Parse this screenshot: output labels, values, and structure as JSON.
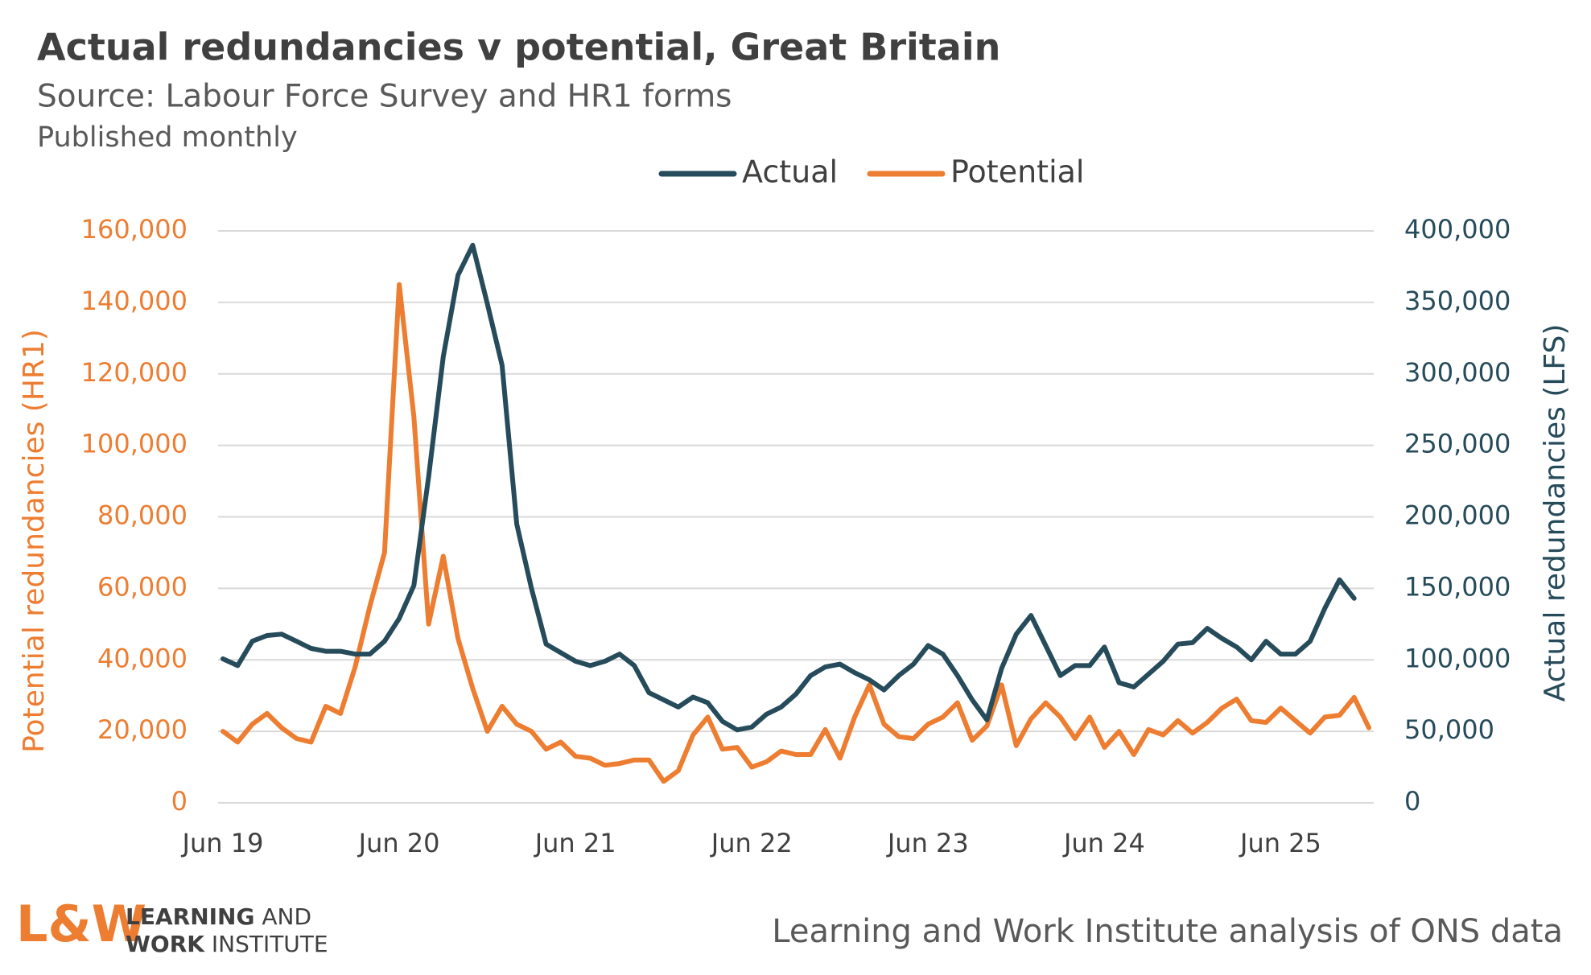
{
  "chart_data": {
    "type": "line",
    "title": "Actual redundancies v potential, Great Britain",
    "subtitle": "Source: Labour Force Survey and HR1 forms",
    "note": "Published monthly",
    "categories": [
      "Jun 19",
      null,
      null,
      null,
      null,
      null,
      null,
      null,
      null,
      null,
      null,
      null,
      "Jun 20",
      null,
      null,
      null,
      null,
      null,
      null,
      null,
      null,
      null,
      null,
      null,
      "Jun 21",
      null,
      null,
      null,
      null,
      null,
      null,
      null,
      null,
      null,
      null,
      null,
      "Jun 22",
      null,
      null,
      null,
      null,
      null,
      null,
      null,
      null,
      null,
      null,
      null,
      "Jun 23",
      null,
      null,
      null,
      null,
      null,
      null,
      null,
      null,
      null,
      null,
      null,
      "Jun 24",
      null,
      null,
      null,
      null,
      null,
      null,
      null,
      null,
      null,
      null,
      null,
      "Jun 25",
      null,
      null,
      null,
      null,
      null,
      null
    ],
    "series": [
      {
        "name": "Actual",
        "color": "#264b5a",
        "axis": "y2",
        "values": [
          100700,
          96000,
          113000,
          117000,
          118000,
          113000,
          108000,
          106000,
          106000,
          104000,
          104000,
          113000,
          129000,
          152000,
          228000,
          312000,
          369000,
          390000,
          349000,
          306000,
          195000,
          150000,
          111000,
          105000,
          99000,
          96000,
          99000,
          104000,
          96000,
          77000,
          72000,
          67000,
          74000,
          70000,
          57000,
          51000,
          53000,
          62000,
          67000,
          76000,
          89000,
          95000,
          97000,
          91000,
          86000,
          79000,
          89000,
          97000,
          110000,
          104000,
          89000,
          72000,
          58000,
          94000,
          118000,
          131000,
          110000,
          89000,
          96000,
          96000,
          109000,
          84000,
          81000,
          90000,
          99000,
          111000,
          112000,
          122000,
          115000,
          109000,
          100000,
          113000,
          104000,
          104000,
          113000,
          136000,
          156000,
          143000,
          null
        ]
      },
      {
        "name": "Potential",
        "color": "#ed7d31",
        "values": [
          20000,
          17000,
          22000,
          25000,
          21000,
          18000,
          17000,
          27000,
          25000,
          38000,
          55000,
          70000,
          145000,
          108000,
          50000,
          69000,
          46000,
          32000,
          20000,
          27000,
          22000,
          20000,
          15000,
          17000,
          13000,
          12500,
          10500,
          11000,
          12000,
          12000,
          6000,
          9000,
          19000,
          24000,
          15000,
          15500,
          10000,
          11500,
          14500,
          13500,
          13500,
          20500,
          12500,
          24000,
          33000,
          22000,
          18500,
          18000,
          22000,
          24000,
          28000,
          17500,
          21500,
          33000,
          16000,
          23500,
          28000,
          24000,
          18000,
          24000,
          15500,
          20000,
          13500,
          20500,
          19000,
          23000,
          19500,
          22500,
          26500,
          29000,
          23000,
          22500,
          26500,
          23000,
          19500,
          24000,
          24500,
          29500,
          21000
        ]
      }
    ],
    "ylabel": "Potential redundancies (HR1)",
    "y2label": "Actual redundancies (LFS)",
    "ylim": [
      0,
      160000
    ],
    "yticks": [
      0,
      {
        "value": 20000,
        "label": "20,000"
      },
      {
        "value": 40000,
        "label": "40,000"
      },
      {
        "value": 60000,
        "label": "60,000"
      },
      {
        "value": 80000,
        "label": "80,000"
      },
      {
        "value": 100000,
        "label": "100,000"
      },
      {
        "value": 120000,
        "label": "120,000"
      },
      {
        "value": 140000,
        "label": "140,000"
      },
      {
        "value": 160000,
        "label": "160,000"
      }
    ],
    "y2lim": [
      0,
      400000
    ],
    "y2ticks": [
      0,
      {
        "value": 50000,
        "label": "50,000"
      },
      {
        "value": 100000,
        "label": "100,000"
      },
      {
        "value": 150000,
        "label": "150,000"
      },
      {
        "value": 200000,
        "label": "200,000"
      },
      {
        "value": 250000,
        "label": "250,000"
      },
      {
        "value": 300000,
        "label": "300,000"
      },
      {
        "value": 350000,
        "label": "350,000"
      },
      {
        "value": 400000,
        "label": "400,000"
      }
    ],
    "grid": true,
    "legend": "top"
  },
  "logo": {
    "mark": "L&W",
    "lines": [
      [
        "LEARNING",
        "AND"
      ],
      [
        "WORK",
        "INSTITUTE"
      ]
    ]
  },
  "credit": "Learning and Work Institute analysis of ONS data"
}
